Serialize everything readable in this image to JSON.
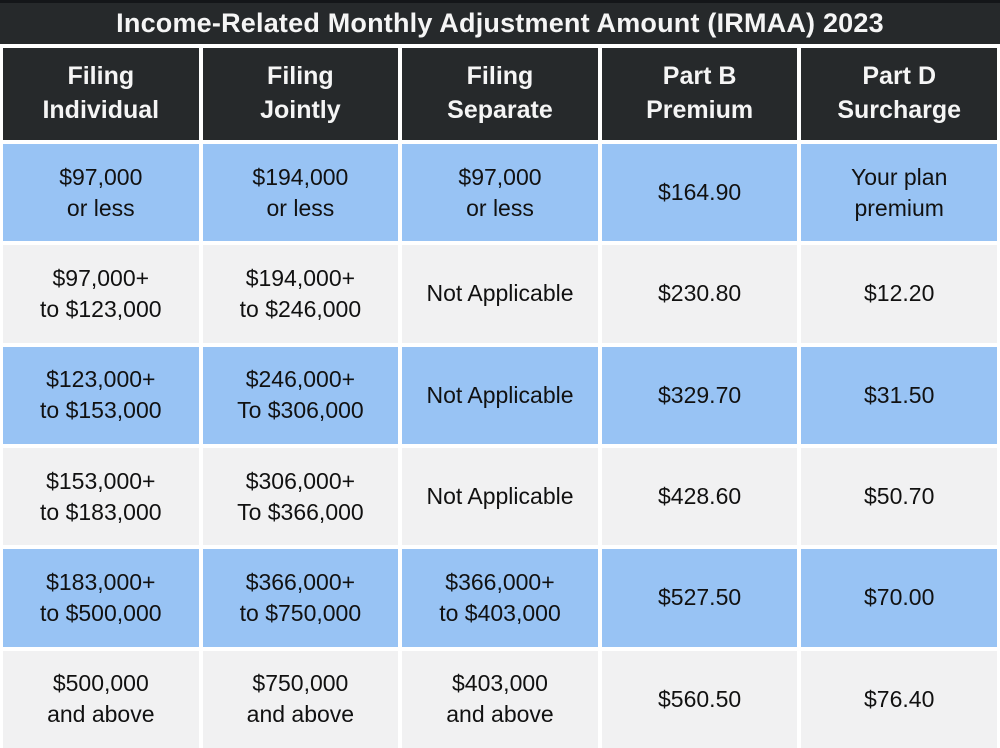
{
  "title": "Income-Related Monthly Adjustment Amount (IRMAA) 2023",
  "colors": {
    "header-bg": "#26292b",
    "row-blue": "#98c3f4",
    "row-gray": "#f1f1f2",
    "text-dark": "#111111",
    "text-light": "#f5f5f5",
    "edge": "#141619",
    "page-bg": "#ffffff"
  },
  "table": {
    "headers": [
      "Filing\nIndividual",
      "Filing\nJointly",
      "Filing\nSeparate",
      "Part B\nPremium",
      "Part D\nSurcharge"
    ],
    "rows": [
      {
        "cells": [
          "$97,000\nor less",
          "$194,000\nor less",
          "$97,000\nor less",
          "$164.90",
          "Your plan\npremium"
        ]
      },
      {
        "cells": [
          "$97,000+\nto $123,000",
          "$194,000+\nto $246,000",
          "Not Applicable",
          "$230.80",
          "$12.20"
        ]
      },
      {
        "cells": [
          "$123,000+\nto $153,000",
          "$246,000+\nTo $306,000",
          "Not Applicable",
          "$329.70",
          "$31.50"
        ]
      },
      {
        "cells": [
          "$153,000+\nto $183,000",
          "$306,000+\nTo $366,000",
          "Not Applicable",
          "$428.60",
          "$50.70"
        ]
      },
      {
        "cells": [
          "$183,000+\nto $500,000",
          "$366,000+\nto $750,000",
          "$366,000+\nto $403,000",
          "$527.50",
          "$70.00"
        ]
      },
      {
        "cells": [
          "$500,000\nand above",
          "$750,000\nand above",
          "$403,000\nand above",
          "$560.50",
          "$76.40"
        ]
      }
    ]
  },
  "chart_data": {
    "type": "table",
    "title": "Income-Related Monthly Adjustment Amount (IRMAA) 2023",
    "columns": [
      "Filing Individual",
      "Filing Jointly",
      "Filing Separate",
      "Part B Premium",
      "Part D Surcharge"
    ],
    "rows": [
      [
        "$97,000 or less",
        "$194,000 or less",
        "$97,000 or less",
        "$164.90",
        "Your plan premium"
      ],
      [
        "$97,000+ to $123,000",
        "$194,000+ to $246,000",
        "Not Applicable",
        "$230.80",
        "$12.20"
      ],
      [
        "$123,000+ to $153,000",
        "$246,000+ To $306,000",
        "Not Applicable",
        "$329.70",
        "$31.50"
      ],
      [
        "$153,000+ to $183,000",
        "$306,000+ To $366,000",
        "Not Applicable",
        "$428.60",
        "$50.70"
      ],
      [
        "$183,000+ to $500,000",
        "$366,000+ to $750,000",
        "$366,000+ to $403,000",
        "$527.50",
        "$70.00"
      ],
      [
        "$500,000 and above",
        "$750,000 and above",
        "$403,000 and above",
        "$560.50",
        "$76.40"
      ]
    ],
    "layout": {
      "row_striping": [
        "blue",
        "gray"
      ],
      "header_style": "dark",
      "grid": "white 4px gaps"
    }
  }
}
